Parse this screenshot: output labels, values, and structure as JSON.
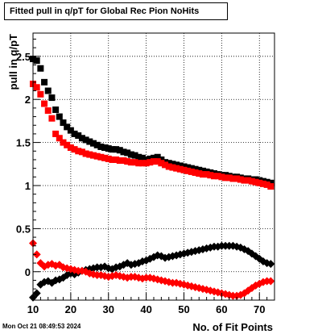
{
  "timestamp": "Mon Oct 21 08:49:53 2024",
  "chart_data": {
    "type": "scatter",
    "title": "Fitted pull in q/pT for Global Rec Pion NoHits",
    "xlabel": "No. of Fit Points",
    "ylabel": "pull in q/pT",
    "xlim": [
      10,
      74
    ],
    "ylim": [
      -0.33,
      2.77
    ],
    "xticks": [
      10,
      20,
      30,
      40,
      50,
      60,
      70
    ],
    "yticks": [
      0,
      0.5,
      1,
      1.5,
      2,
      2.5
    ],
    "ytick_labels": [
      "0",
      "0.5",
      "1",
      "1.5",
      "2",
      "2.5"
    ],
    "grid": true,
    "series": [
      {
        "color": "#000000",
        "marker": "square",
        "x": [
          10,
          11,
          12,
          13,
          14,
          15,
          16,
          17,
          18,
          19,
          20,
          21,
          22,
          23,
          24,
          25,
          26,
          27,
          28,
          29,
          30,
          31,
          32,
          33,
          34,
          35,
          36,
          37,
          38,
          39,
          40,
          41,
          42,
          43,
          44,
          45,
          46,
          47,
          48,
          49,
          50,
          51,
          52,
          53,
          54,
          55,
          56,
          57,
          58,
          59,
          60,
          61,
          62,
          63,
          64,
          65,
          66,
          67,
          68,
          69,
          70,
          71,
          72,
          73
        ],
        "y": [
          2.47,
          2.45,
          2.36,
          2.2,
          2.1,
          2.02,
          1.88,
          1.8,
          1.73,
          1.68,
          1.64,
          1.6,
          1.58,
          1.55,
          1.53,
          1.51,
          1.49,
          1.47,
          1.45,
          1.44,
          1.43,
          1.42,
          1.42,
          1.41,
          1.39,
          1.38,
          1.36,
          1.35,
          1.33,
          1.32,
          1.3,
          1.31,
          1.32,
          1.33,
          1.3,
          1.27,
          1.26,
          1.25,
          1.24,
          1.23,
          1.22,
          1.21,
          1.2,
          1.19,
          1.18,
          1.17,
          1.16,
          1.15,
          1.14,
          1.13,
          1.12,
          1.12,
          1.11,
          1.1,
          1.1,
          1.09,
          1.08,
          1.08,
          1.07,
          1.07,
          1.06,
          1.05,
          1.04,
          1.03
        ]
      },
      {
        "color": "#ff0000",
        "marker": "square",
        "x": [
          10,
          11,
          12,
          13,
          14,
          15,
          16,
          17,
          18,
          19,
          20,
          21,
          22,
          23,
          24,
          25,
          26,
          27,
          28,
          29,
          30,
          31,
          32,
          33,
          34,
          35,
          36,
          37,
          38,
          39,
          40,
          41,
          42,
          43,
          44,
          45,
          46,
          47,
          48,
          49,
          50,
          51,
          52,
          53,
          54,
          55,
          56,
          57,
          58,
          59,
          60,
          61,
          62,
          63,
          64,
          65,
          66,
          67,
          68,
          69,
          70,
          71,
          72,
          73
        ],
        "y": [
          2.18,
          2.14,
          2.06,
          1.95,
          1.87,
          1.78,
          1.6,
          1.55,
          1.5,
          1.47,
          1.44,
          1.42,
          1.4,
          1.39,
          1.37,
          1.36,
          1.35,
          1.34,
          1.33,
          1.32,
          1.31,
          1.3,
          1.3,
          1.29,
          1.29,
          1.28,
          1.27,
          1.27,
          1.26,
          1.26,
          1.26,
          1.27,
          1.28,
          1.28,
          1.26,
          1.24,
          1.22,
          1.21,
          1.2,
          1.19,
          1.18,
          1.17,
          1.16,
          1.15,
          1.14,
          1.13,
          1.13,
          1.12,
          1.11,
          1.11,
          1.1,
          1.09,
          1.09,
          1.08,
          1.08,
          1.07,
          1.06,
          1.06,
          1.05,
          1.04,
          1.03,
          1.02,
          1.01,
          0.99
        ]
      },
      {
        "color": "#000000",
        "marker": "diamond",
        "x": [
          10,
          11,
          12,
          13,
          14,
          15,
          16,
          17,
          18,
          19,
          20,
          21,
          22,
          23,
          24,
          25,
          26,
          27,
          28,
          29,
          30,
          31,
          32,
          33,
          34,
          35,
          36,
          37,
          38,
          39,
          40,
          41,
          42,
          43,
          44,
          45,
          46,
          47,
          48,
          49,
          50,
          51,
          52,
          53,
          54,
          55,
          56,
          57,
          58,
          59,
          60,
          61,
          62,
          63,
          64,
          65,
          66,
          67,
          68,
          69,
          70,
          71,
          72,
          73
        ],
        "y": [
          -0.3,
          -0.25,
          -0.15,
          -0.12,
          -0.11,
          -0.13,
          -0.1,
          -0.09,
          -0.07,
          -0.04,
          -0.02,
          -0.03,
          -0.01,
          0.01,
          0.02,
          0.03,
          0.04,
          0.05,
          0.05,
          0.06,
          0.04,
          0.03,
          0.05,
          0.06,
          0.08,
          0.1,
          0.08,
          0.09,
          0.1,
          0.12,
          0.13,
          0.15,
          0.17,
          0.19,
          0.18,
          0.16,
          0.17,
          0.18,
          0.19,
          0.2,
          0.21,
          0.22,
          0.23,
          0.24,
          0.25,
          0.26,
          0.27,
          0.28,
          0.29,
          0.29,
          0.3,
          0.3,
          0.3,
          0.3,
          0.29,
          0.28,
          0.26,
          0.24,
          0.21,
          0.18,
          0.15,
          0.12,
          0.1,
          0.09
        ]
      },
      {
        "color": "#ff0000",
        "marker": "diamond",
        "x": [
          10,
          11,
          12,
          13,
          14,
          15,
          16,
          17,
          18,
          19,
          20,
          21,
          22,
          23,
          24,
          25,
          26,
          27,
          28,
          29,
          30,
          31,
          32,
          33,
          34,
          35,
          36,
          37,
          38,
          39,
          40,
          41,
          42,
          43,
          44,
          45,
          46,
          47,
          48,
          49,
          50,
          51,
          52,
          53,
          54,
          55,
          56,
          57,
          58,
          59,
          60,
          61,
          62,
          63,
          64,
          65,
          66,
          67,
          68,
          69,
          70,
          71,
          72,
          73
        ],
        "y": [
          0.33,
          0.2,
          0.1,
          0.06,
          0.08,
          0.09,
          0.07,
          0.08,
          0.05,
          0.04,
          0.03,
          0.02,
          0.01,
          0.01,
          0.0,
          -0.02,
          -0.03,
          -0.04,
          -0.04,
          -0.05,
          -0.06,
          -0.05,
          -0.04,
          -0.05,
          -0.06,
          -0.07,
          -0.06,
          -0.06,
          -0.07,
          -0.08,
          -0.07,
          -0.07,
          -0.08,
          -0.09,
          -0.1,
          -0.11,
          -0.12,
          -0.13,
          -0.13,
          -0.14,
          -0.15,
          -0.16,
          -0.17,
          -0.18,
          -0.19,
          -0.2,
          -0.21,
          -0.22,
          -0.23,
          -0.24,
          -0.25,
          -0.26,
          -0.27,
          -0.28,
          -0.28,
          -0.27,
          -0.25,
          -0.22,
          -0.19,
          -0.16,
          -0.14,
          -0.12,
          -0.11,
          -0.11
        ]
      }
    ]
  }
}
